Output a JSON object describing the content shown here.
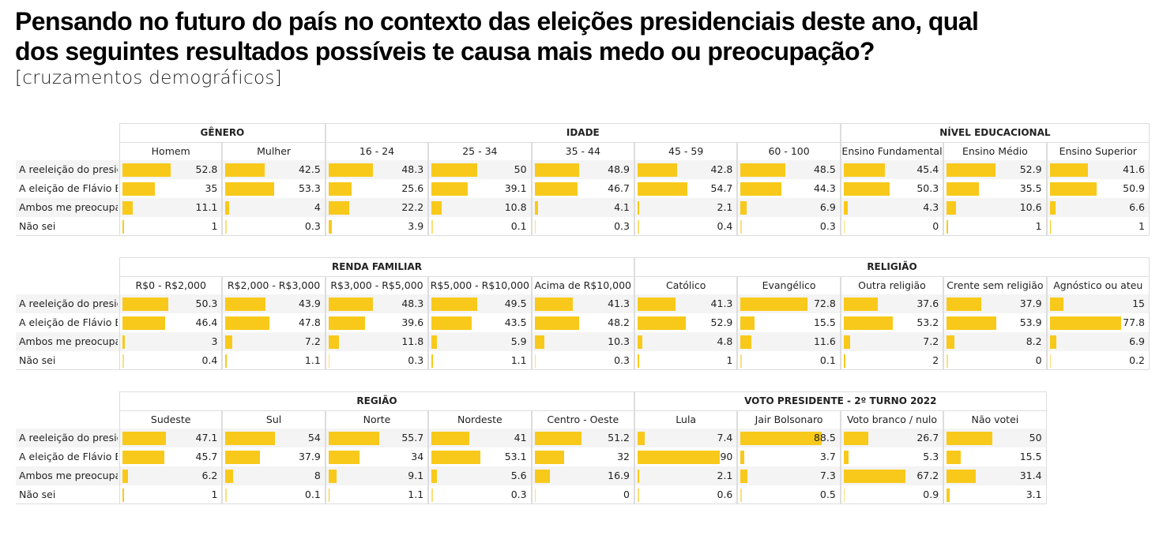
{
  "title_line1": "Pensando no futuro do país no contexto das eleições presidenciais deste ano, qual",
  "title_line2": "dos seguintes resultados possíveis te causa mais medo ou preocupação?",
  "subtitle": "[cruzamentos demográficos]",
  "bar_color": "#f8c91a",
  "chart_data": {
    "type": "table",
    "value_scale": [
      0,
      100
    ],
    "row_labels": [
      "A reeleição do presidente Lula",
      "A eleição de Flávio Bolsonaro",
      "Ambos me preocupam",
      "Não sei"
    ],
    "tables": [
      {
        "groups": [
          {
            "name": "GÊNERO",
            "columns": [
              {
                "name": "Homem",
                "values": [
                  52.8,
                  35,
                  11.1,
                  1
                ]
              },
              {
                "name": "Mulher",
                "values": [
                  42.5,
                  53.3,
                  4,
                  0.3
                ]
              }
            ]
          },
          {
            "name": "IDADE",
            "columns": [
              {
                "name": "16 - 24",
                "values": [
                  48.3,
                  25.6,
                  22.2,
                  3.9
                ]
              },
              {
                "name": "25 - 34",
                "values": [
                  50,
                  39.1,
                  10.8,
                  0.1
                ]
              },
              {
                "name": "35 - 44",
                "values": [
                  48.9,
                  46.7,
                  4.1,
                  0.3
                ]
              },
              {
                "name": "45 - 59",
                "values": [
                  42.8,
                  54.7,
                  2.1,
                  0.4
                ]
              },
              {
                "name": "60 - 100",
                "values": [
                  48.5,
                  44.3,
                  6.9,
                  0.3
                ]
              }
            ]
          },
          {
            "name": "NÍVEL EDUCACIONAL",
            "columns": [
              {
                "name": "Ensino Fundamental",
                "values": [
                  45.4,
                  50.3,
                  4.3,
                  0
                ]
              },
              {
                "name": "Ensino Médio",
                "values": [
                  52.9,
                  35.5,
                  10.6,
                  1
                ]
              },
              {
                "name": "Ensino Superior",
                "values": [
                  41.6,
                  50.9,
                  6.6,
                  1
                ]
              }
            ]
          }
        ]
      },
      {
        "groups": [
          {
            "name": "RENDA FAMILIAR",
            "columns": [
              {
                "name": "R$0 - R$2,000",
                "values": [
                  50.3,
                  46.4,
                  3,
                  0.4
                ]
              },
              {
                "name": "R$2,000 - R$3,000",
                "values": [
                  43.9,
                  47.8,
                  7.2,
                  1.1
                ]
              },
              {
                "name": "R$3,000 - R$5,000",
                "values": [
                  48.3,
                  39.6,
                  11.8,
                  0.3
                ]
              },
              {
                "name": "R$5,000 - R$10,000",
                "values": [
                  49.5,
                  43.5,
                  5.9,
                  1.1
                ]
              },
              {
                "name": "Acima de R$10,000",
                "values": [
                  41.3,
                  48.2,
                  10.3,
                  0.3
                ]
              }
            ]
          },
          {
            "name": "RELIGIÃO",
            "columns": [
              {
                "name": "Católico",
                "values": [
                  41.3,
                  52.9,
                  4.8,
                  1
                ]
              },
              {
                "name": "Evangélico",
                "values": [
                  72.8,
                  15.5,
                  11.6,
                  0.1
                ]
              },
              {
                "name": "Outra religião",
                "values": [
                  37.6,
                  53.2,
                  7.2,
                  2
                ]
              },
              {
                "name": "Crente sem religião",
                "values": [
                  37.9,
                  53.9,
                  8.2,
                  0
                ]
              },
              {
                "name": "Agnóstico ou ateu",
                "values": [
                  15,
                  77.8,
                  6.9,
                  0.2
                ]
              }
            ]
          }
        ]
      },
      {
        "groups": [
          {
            "name": "REGIÃO",
            "columns": [
              {
                "name": "Sudeste",
                "values": [
                  47.1,
                  45.7,
                  6.2,
                  1
                ]
              },
              {
                "name": "Sul",
                "values": [
                  54,
                  37.9,
                  8,
                  0.1
                ]
              },
              {
                "name": "Norte",
                "values": [
                  55.7,
                  34,
                  9.1,
                  1.1
                ]
              },
              {
                "name": "Nordeste",
                "values": [
                  41,
                  53.1,
                  5.6,
                  0.3
                ]
              },
              {
                "name": "Centro - Oeste",
                "values": [
                  51.2,
                  32,
                  16.9,
                  0
                ]
              }
            ]
          },
          {
            "name": "VOTO PRESIDENTE - 2º TURNO 2022",
            "columns": [
              {
                "name": "Lula",
                "values": [
                  7.4,
                  90,
                  2.1,
                  0.6
                ]
              },
              {
                "name": "Jair Bolsonaro",
                "values": [
                  88.5,
                  3.7,
                  7.3,
                  0.5
                ]
              },
              {
                "name": "Voto branco / nulo",
                "values": [
                  26.7,
                  5.3,
                  67.2,
                  0.9
                ]
              },
              {
                "name": "Não votei",
                "values": [
                  50,
                  15.5,
                  31.4,
                  3.1
                ]
              }
            ]
          }
        ]
      }
    ]
  }
}
